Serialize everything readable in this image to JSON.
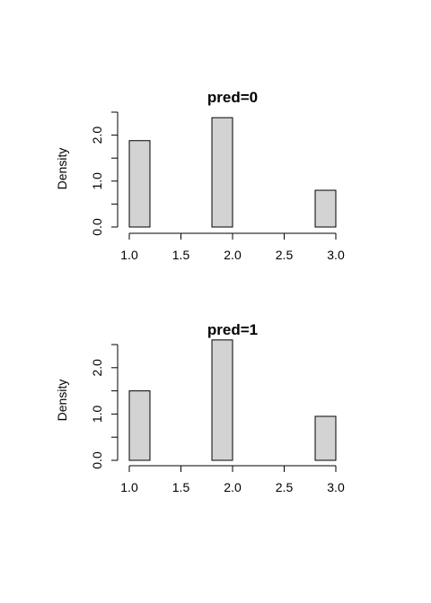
{
  "chart_data": [
    {
      "type": "bar",
      "title": "pred=0",
      "xlabel": "",
      "ylabel": "Density",
      "bins": [
        {
          "x0": 1.0,
          "x1": 1.2,
          "density": 1.88
        },
        {
          "x0": 1.2,
          "x1": 1.4,
          "density": 0
        },
        {
          "x0": 1.4,
          "x1": 1.6,
          "density": 0
        },
        {
          "x0": 1.6,
          "x1": 1.8,
          "density": 0
        },
        {
          "x0": 1.8,
          "x1": 2.0,
          "density": 2.38
        },
        {
          "x0": 2.0,
          "x1": 2.2,
          "density": 0
        },
        {
          "x0": 2.2,
          "x1": 2.4,
          "density": 0
        },
        {
          "x0": 2.4,
          "x1": 2.6,
          "density": 0
        },
        {
          "x0": 2.6,
          "x1": 2.8,
          "density": 0
        },
        {
          "x0": 2.8,
          "x1": 3.0,
          "density": 0.8
        }
      ],
      "xlim": [
        1.0,
        3.0
      ],
      "ylim": [
        0,
        2.5
      ],
      "xticks": [
        1.0,
        1.5,
        2.0,
        2.5,
        3.0
      ],
      "xtick_labels": [
        "1.0",
        "1.5",
        "2.0",
        "2.5",
        "3.0"
      ],
      "yticks": [
        0,
        0.5,
        1.0,
        1.5,
        2.0,
        2.5
      ],
      "ytick_labels": [
        "0.0",
        "",
        "1.0",
        "",
        "2.0",
        ""
      ],
      "grid": false
    },
    {
      "type": "bar",
      "title": "pred=1",
      "xlabel": "",
      "ylabel": "Density",
      "bins": [
        {
          "x0": 1.0,
          "x1": 1.2,
          "density": 1.5
        },
        {
          "x0": 1.2,
          "x1": 1.4,
          "density": 0
        },
        {
          "x0": 1.4,
          "x1": 1.6,
          "density": 0
        },
        {
          "x0": 1.6,
          "x1": 1.8,
          "density": 0
        },
        {
          "x0": 1.8,
          "x1": 2.0,
          "density": 2.6
        },
        {
          "x0": 2.0,
          "x1": 2.2,
          "density": 0
        },
        {
          "x0": 2.2,
          "x1": 2.4,
          "density": 0
        },
        {
          "x0": 2.4,
          "x1": 2.6,
          "density": 0
        },
        {
          "x0": 2.6,
          "x1": 2.8,
          "density": 0
        },
        {
          "x0": 2.8,
          "x1": 3.0,
          "density": 0.95
        }
      ],
      "xlim": [
        1.0,
        3.0
      ],
      "ylim": [
        0,
        2.5
      ],
      "xticks": [
        1.0,
        1.5,
        2.0,
        2.5,
        3.0
      ],
      "xtick_labels": [
        "1.0",
        "1.5",
        "2.0",
        "2.5",
        "3.0"
      ],
      "yticks": [
        0,
        0.5,
        1.0,
        1.5,
        2.0,
        2.5
      ],
      "ytick_labels": [
        "0.0",
        "",
        "1.0",
        "",
        "2.0",
        ""
      ],
      "grid": false
    }
  ],
  "colors": {
    "bar_fill": "#d3d3d3",
    "bar_stroke": "#000000",
    "background": "#ffffff"
  }
}
